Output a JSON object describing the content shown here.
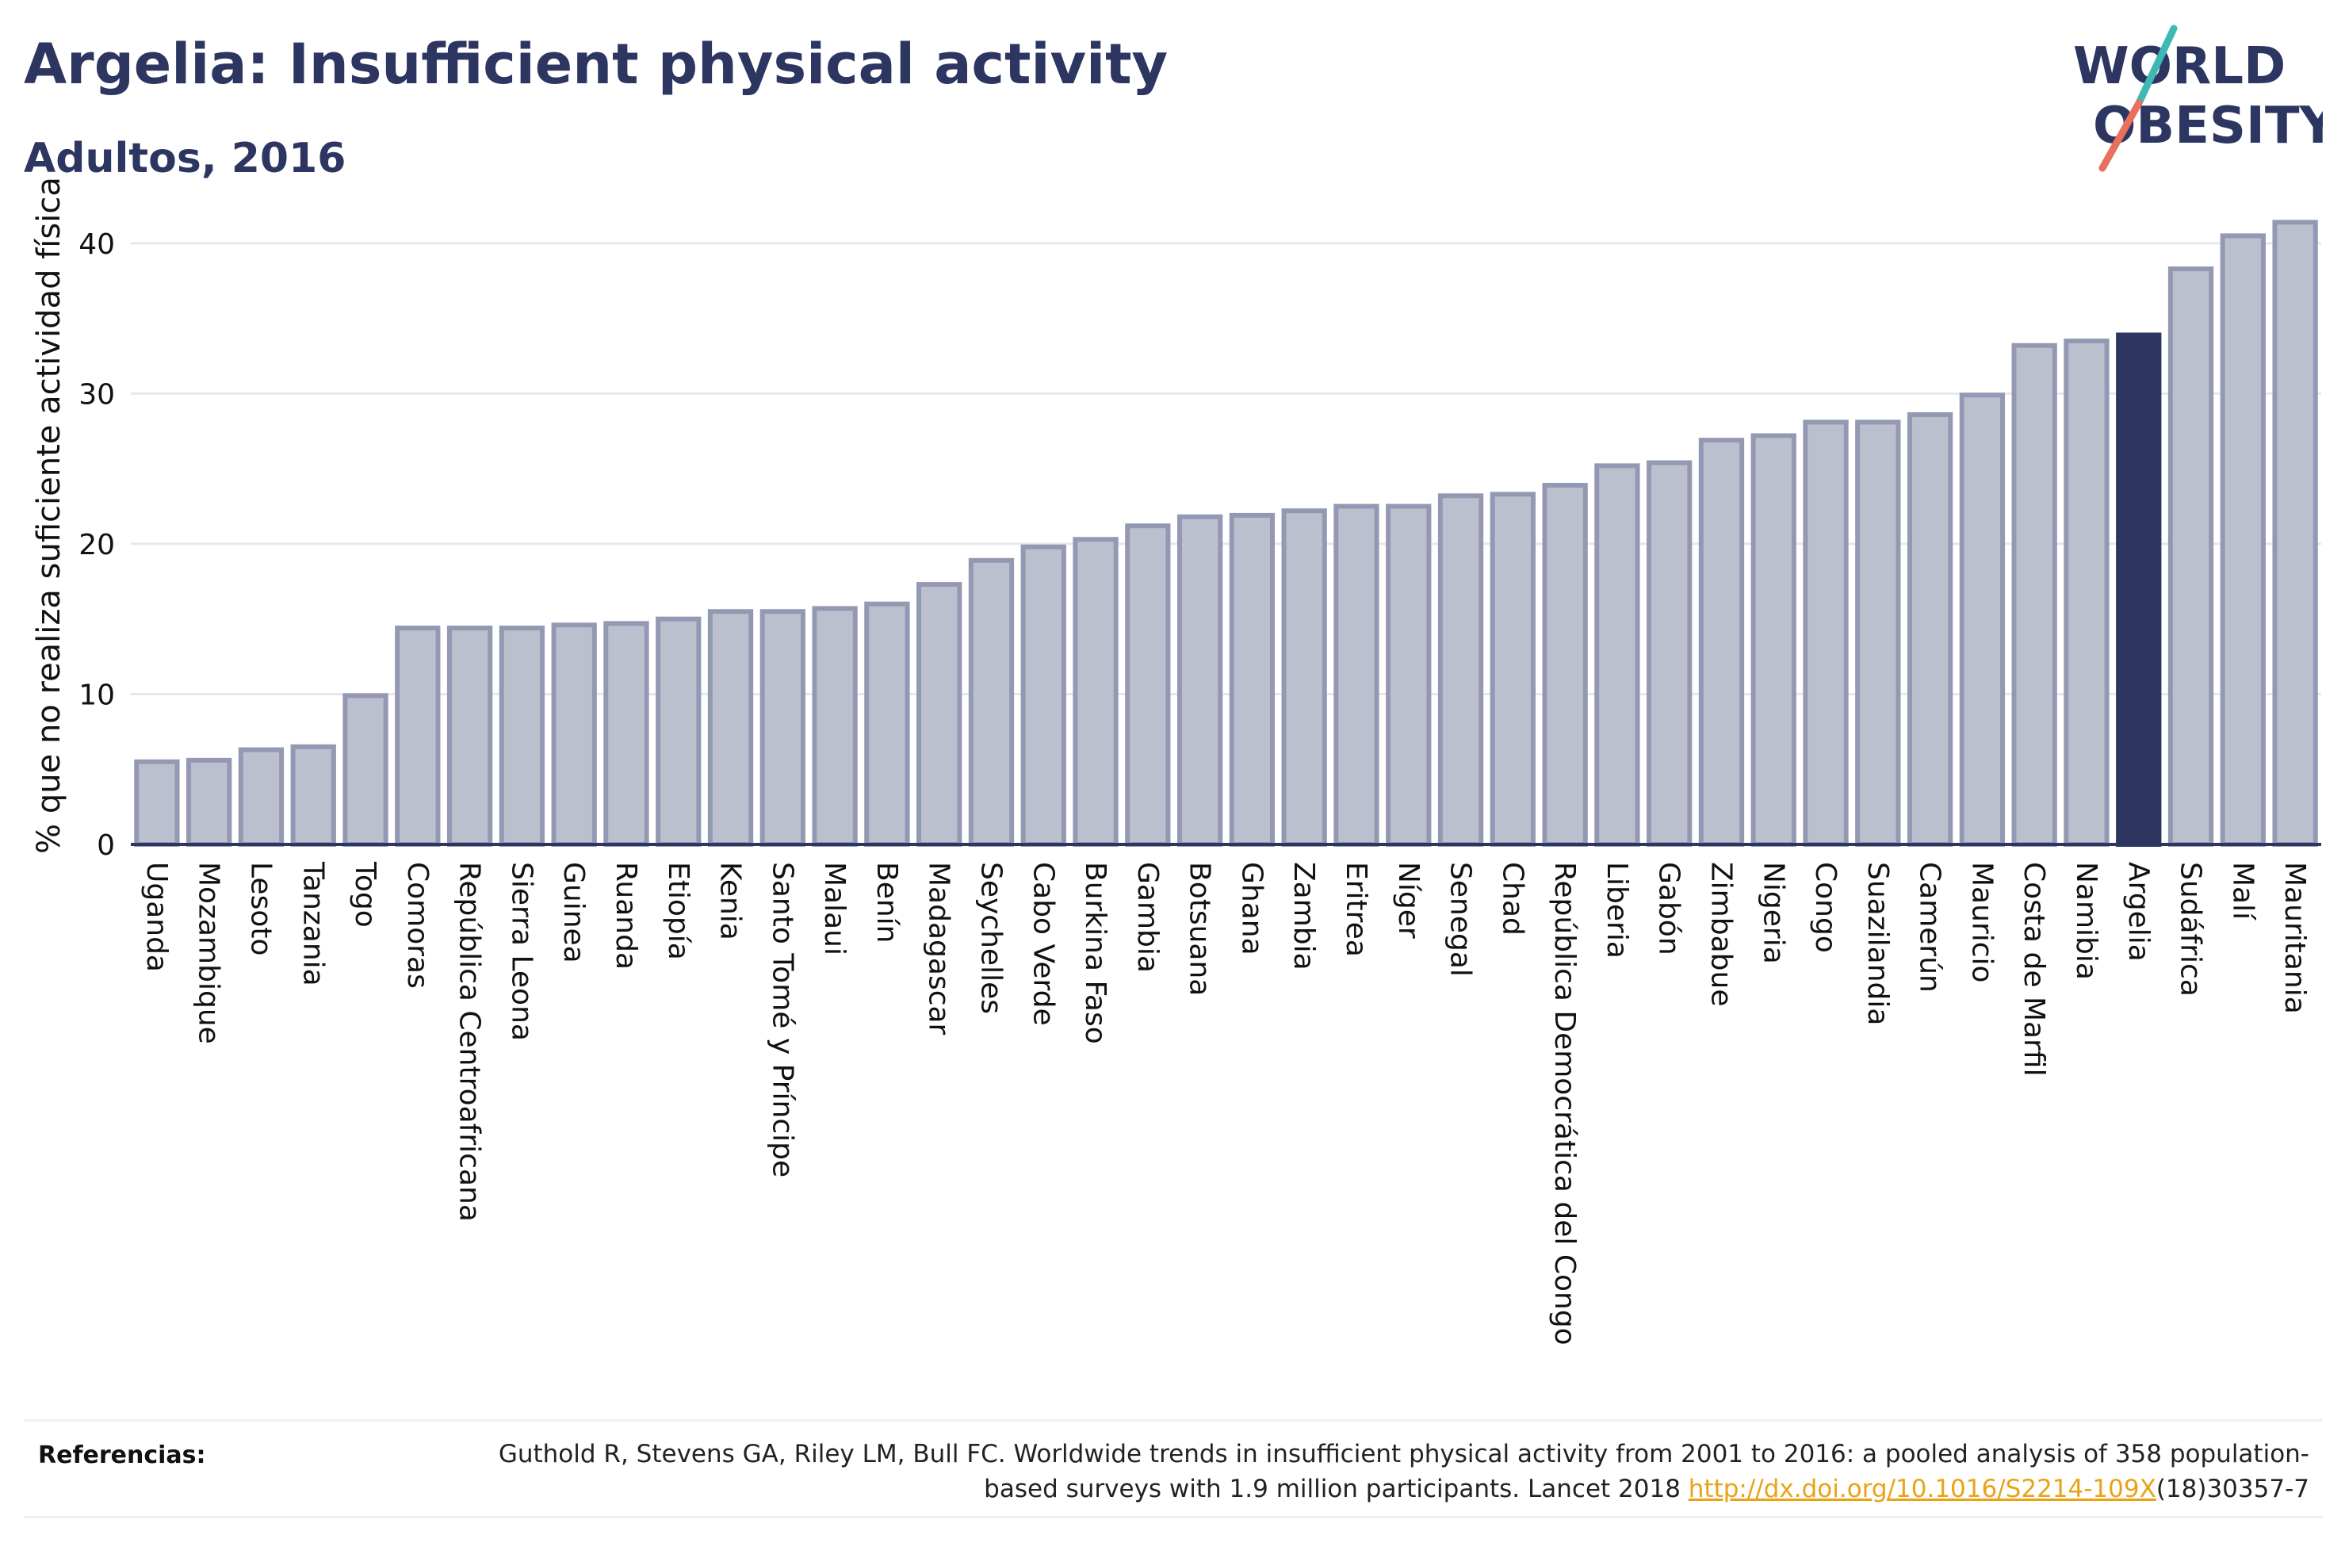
{
  "title": "Argelia: Insufficient physical activity",
  "subtitle": "Adultos, 2016",
  "logo": {
    "line1": "WORLD",
    "line2": "OBESITY",
    "slash_color_top": "#3fb8b3",
    "slash_color_bottom": "#e8705c"
  },
  "colors": {
    "bar": "#bcc0ce",
    "bar_edge": "#9499b3",
    "highlight": "#2d3561",
    "grid": "#e6e8ec",
    "axis": "#2d3561"
  },
  "chart_data": {
    "type": "bar",
    "ylabel": "% que no realiza suficiente actividad física",
    "ylim": [
      0,
      43
    ],
    "yticks": [
      0,
      10,
      20,
      30,
      40
    ],
    "grid": true,
    "highlight": "Argelia",
    "categories": [
      "Uganda",
      "Mozambique",
      "Lesoto",
      "Tanzania",
      "Togo",
      "Comoras",
      "República Centroafricana",
      "Sierra Leona",
      "Guinea",
      "Ruanda",
      "Etiopía",
      "Kenia",
      "Santo Tomé y Príncipe",
      "Malaui",
      "Benín",
      "Madagascar",
      "Seychelles",
      "Cabo Verde",
      "Burkina Faso",
      "Gambia",
      "Botsuana",
      "Ghana",
      "Zambia",
      "Eritrea",
      "Níger",
      "Senegal",
      "Chad",
      "República Democrática del Congo",
      "Liberia",
      "Gabón",
      "Zimbabue",
      "Nigeria",
      "Congo",
      "Suazilandia",
      "Camerún",
      "Mauricio",
      "Costa de Marfil",
      "Namibia",
      "Argelia",
      "Sudáfrica",
      "Malí",
      "Mauritania"
    ],
    "values": [
      5.5,
      5.6,
      6.3,
      6.5,
      9.9,
      14.4,
      14.4,
      14.4,
      14.6,
      14.7,
      15.0,
      15.5,
      15.5,
      15.7,
      16.0,
      17.3,
      18.9,
      19.8,
      20.3,
      21.2,
      21.8,
      21.9,
      22.2,
      22.5,
      22.5,
      23.2,
      23.3,
      23.9,
      25.2,
      25.4,
      26.9,
      27.2,
      28.1,
      28.1,
      28.6,
      29.9,
      33.2,
      33.5,
      33.9,
      38.3,
      40.5,
      41.4
    ]
  },
  "references": {
    "label": "Referencias:",
    "text_before": "Guthold R, Stevens GA, Riley LM, Bull FC. Worldwide trends in insufficient physical activity from 2001 to 2016: a pooled analysis of 358 population-based surveys with 1.9 million participants. Lancet 2018 ",
    "link": "http://dx.doi.org/10.1016/S2214-109X",
    "text_after": "(18)30357-7"
  }
}
